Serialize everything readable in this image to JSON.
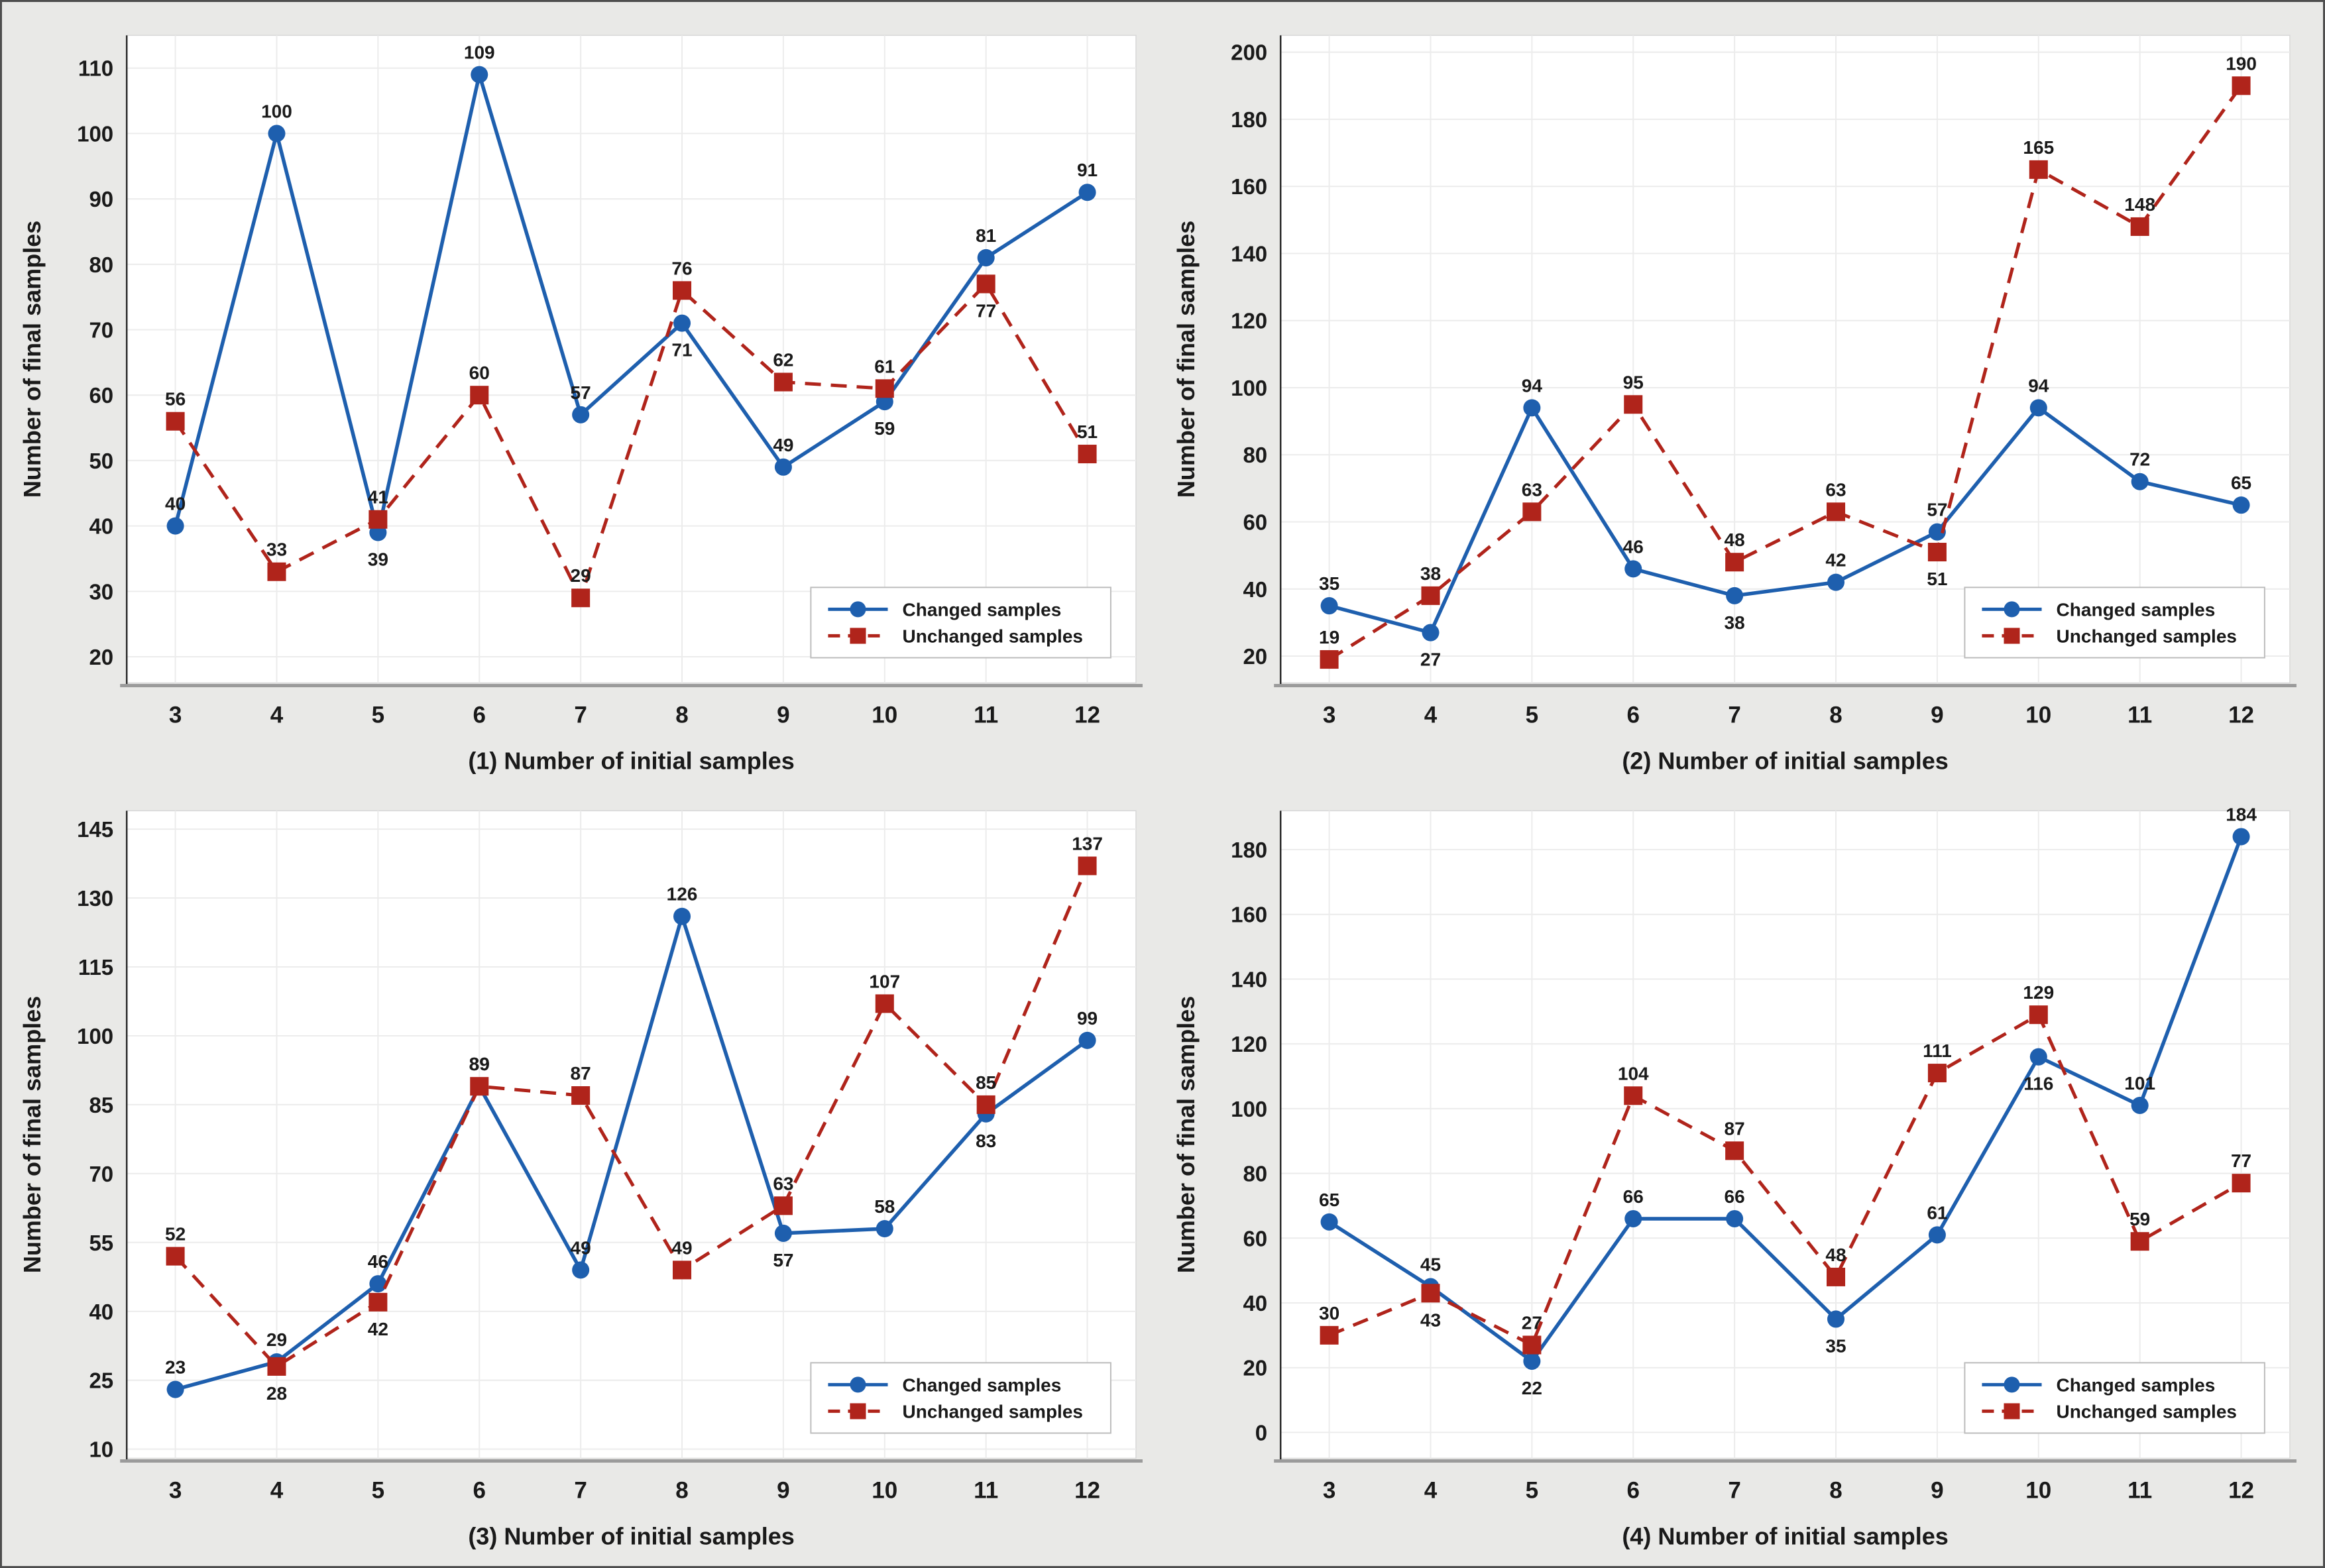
{
  "style": {
    "changed_color": "#1e5fae",
    "unchanged_color": "#b0241b",
    "grid_color": "#ececec",
    "plot_bg": "#ffffff",
    "plot_border": "#d8d8d8",
    "outer_bg": "#e9e9e7",
    "axis_color": "#9b9b9b",
    "yaxis_color": "#2b2b2b",
    "text_color": "#1a1a1a",
    "label_color": "#111111",
    "legend_border": "#bdbdbd"
  },
  "legend": {
    "items": [
      {
        "label": "Changed samples",
        "marker": "circle",
        "line": "solid"
      },
      {
        "label": "Unchanged samples",
        "marker": "square",
        "line": "dashed"
      }
    ]
  },
  "chart_data": [
    {
      "type": "line",
      "index": "1",
      "title": "",
      "xlabel": "(1) Number of initial samples",
      "ylabel": "Number of final samples",
      "x": [
        3,
        4,
        5,
        6,
        7,
        8,
        9,
        10,
        11,
        12
      ],
      "yticks": [
        20,
        30,
        40,
        50,
        60,
        70,
        80,
        90,
        100,
        110
      ],
      "ylim": [
        16,
        115
      ],
      "xlim": [
        2.52,
        12.48
      ],
      "grid": true,
      "legend_position": "bottom-right",
      "series": [
        {
          "name": "Changed samples",
          "marker": "circle",
          "line": "solid",
          "values": [
            40,
            100,
            39,
            109,
            57,
            71,
            49,
            59,
            81,
            91
          ],
          "label_pos": [
            "a",
            "a",
            "b",
            "a",
            "a",
            "b",
            "a",
            "b",
            "a",
            "a"
          ]
        },
        {
          "name": "Unchanged samples",
          "marker": "square",
          "line": "dashed",
          "values": [
            56,
            33,
            41,
            60,
            29,
            76,
            62,
            61,
            77,
            51
          ],
          "label_pos": [
            "a",
            "a",
            "a",
            "a",
            "a",
            "a",
            "a",
            "a",
            "b",
            "a"
          ]
        }
      ]
    },
    {
      "type": "line",
      "index": "2",
      "title": "",
      "xlabel": "(2) Number of initial samples",
      "ylabel": "Number of final samples",
      "x": [
        3,
        4,
        5,
        6,
        7,
        8,
        9,
        10,
        11,
        12
      ],
      "yticks": [
        20,
        40,
        60,
        80,
        100,
        120,
        140,
        160,
        180,
        200
      ],
      "ylim": [
        12,
        205
      ],
      "xlim": [
        2.52,
        12.48
      ],
      "grid": true,
      "legend_position": "bottom-right",
      "series": [
        {
          "name": "Changed samples",
          "marker": "circle",
          "line": "solid",
          "values": [
            35,
            27,
            94,
            46,
            38,
            42,
            57,
            94,
            72,
            65
          ],
          "label_pos": [
            "a",
            "b",
            "a",
            "a",
            "b",
            "a",
            "a",
            "a",
            "a",
            "a"
          ]
        },
        {
          "name": "Unchanged samples",
          "marker": "square",
          "line": "dashed",
          "values": [
            19,
            38,
            63,
            95,
            48,
            63,
            51,
            165,
            148,
            190
          ],
          "label_pos": [
            "a",
            "a",
            "a",
            "a",
            "a",
            "a",
            "b",
            "a",
            "a",
            "a"
          ]
        }
      ]
    },
    {
      "type": "line",
      "index": "3",
      "title": "",
      "xlabel": "(3) Number of initial samples",
      "ylabel": "Number of final samples",
      "x": [
        3,
        4,
        5,
        6,
        7,
        8,
        9,
        10,
        11,
        12
      ],
      "yticks": [
        10,
        25,
        40,
        55,
        70,
        85,
        100,
        115,
        130,
        145
      ],
      "ylim": [
        8,
        149
      ],
      "xlim": [
        2.52,
        12.48
      ],
      "grid": true,
      "legend_position": "bottom-right",
      "series": [
        {
          "name": "Changed samples",
          "marker": "circle",
          "line": "solid",
          "values": [
            23,
            29,
            46,
            89,
            49,
            126,
            57,
            58,
            83,
            99
          ],
          "label_pos": [
            "a",
            "a",
            "a",
            "a",
            "a",
            "a",
            "b",
            "a",
            "b",
            "a"
          ]
        },
        {
          "name": "Unchanged samples",
          "marker": "square",
          "line": "dashed",
          "values": [
            52,
            28,
            42,
            89,
            87,
            49,
            63,
            107,
            85,
            137
          ],
          "label_pos": [
            "a",
            "b",
            "b",
            "a",
            "a",
            "a",
            "a",
            "a",
            "a",
            "a"
          ]
        }
      ]
    },
    {
      "type": "line",
      "index": "4",
      "title": "",
      "xlabel": "(4) Number of initial samples",
      "ylabel": "Number of final samples",
      "x": [
        3,
        4,
        5,
        6,
        7,
        8,
        9,
        10,
        11,
        12
      ],
      "yticks": [
        0,
        20,
        40,
        60,
        80,
        100,
        120,
        140,
        160,
        180
      ],
      "ylim": [
        -8,
        192
      ],
      "xlim": [
        2.52,
        12.48
      ],
      "grid": true,
      "legend_position": "bottom-right",
      "series": [
        {
          "name": "Changed samples",
          "marker": "circle",
          "line": "solid",
          "values": [
            65,
            45,
            22,
            66,
            66,
            35,
            61,
            116,
            101,
            184
          ],
          "label_pos": [
            "a",
            "a",
            "b",
            "a",
            "a",
            "b",
            "a",
            "b",
            "a",
            "a"
          ]
        },
        {
          "name": "Unchanged samples",
          "marker": "square",
          "line": "dashed",
          "values": [
            30,
            43,
            27,
            104,
            87,
            48,
            111,
            129,
            59,
            77
          ],
          "label_pos": [
            "a",
            "b",
            "a",
            "a",
            "a",
            "a",
            "a",
            "a",
            "a",
            "a"
          ]
        }
      ]
    }
  ]
}
